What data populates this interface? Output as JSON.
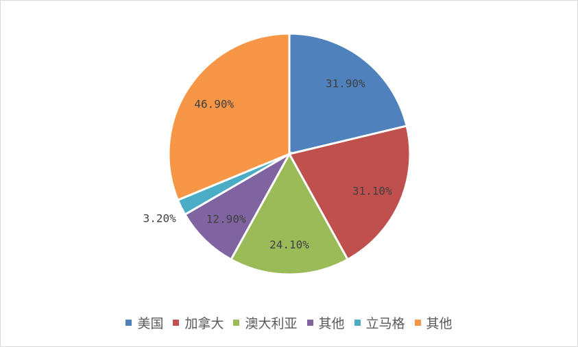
{
  "chart_data": {
    "type": "pie",
    "title": "",
    "categories": [
      "美国",
      "加拿大",
      "澳大利亚",
      "其他",
      "立马格",
      "其他"
    ],
    "values": [
      31.9,
      31.1,
      24.1,
      12.9,
      3.2,
      46.9
    ],
    "labels": [
      "31.90%",
      "31.10%",
      "24.10%",
      "12.90%",
      "3.20%",
      "46.90%"
    ],
    "colors": [
      "#4f81bd",
      "#c0504d",
      "#9bbb59",
      "#8064a2",
      "#4bacc6",
      "#f79646"
    ],
    "start_angle": "top, clockwise",
    "legend_position": "bottom"
  }
}
